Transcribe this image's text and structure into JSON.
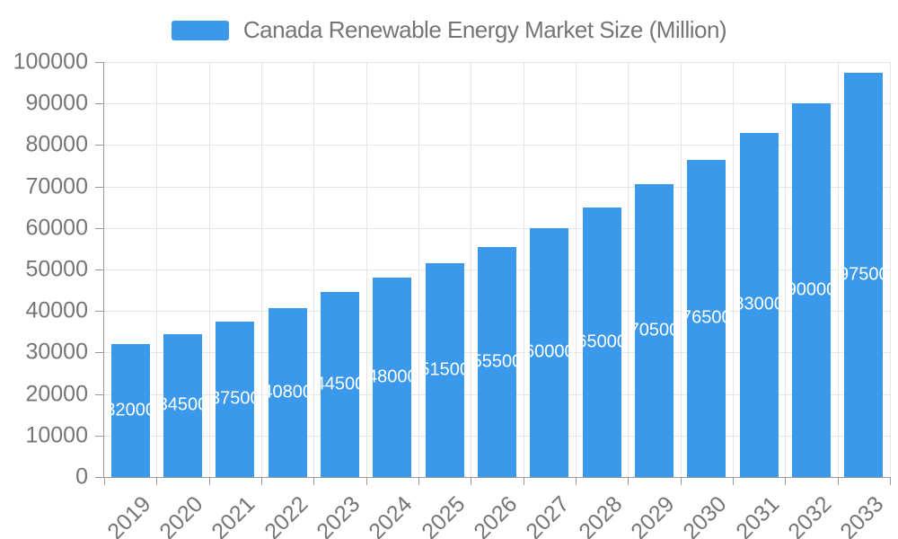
{
  "legend": {
    "label": "Canada Renewable Energy Market Size (Million)"
  },
  "chart_data": {
    "type": "bar",
    "title": "Canada Renewable Energy Market Size (Million)",
    "categories": [
      "2019",
      "2020",
      "2021",
      "2022",
      "2023",
      "2024",
      "2025",
      "2026",
      "2027",
      "2028",
      "2029",
      "2030",
      "2031",
      "2032",
      "2033"
    ],
    "values": [
      32000,
      34500,
      37500,
      40800,
      44500,
      48000,
      51500,
      55500,
      60000,
      65000,
      70500,
      76500,
      83000,
      90000,
      97500
    ],
    "series_name": "Canada Renewable Energy Market Size (Million)",
    "xlabel": "",
    "ylabel": "",
    "ylim": [
      0,
      100000
    ],
    "ytick_step": 10000,
    "ytick_labels": [
      "0",
      "10000",
      "20000",
      "30000",
      "40000",
      "50000",
      "60000",
      "70000",
      "80000",
      "90000",
      "100000"
    ],
    "xtick_rotation_deg": 45,
    "show_value_labels": true,
    "value_label_position": "inside-center",
    "grid": true,
    "legend_position": "top-center",
    "colors": {
      "bar": "#3B99EC",
      "grid_line": "#E6E6E6",
      "axis_line": "#999999",
      "tick_text": "#757575",
      "value_label_text": "#FFFFFF",
      "legend_text": "#757575"
    }
  }
}
